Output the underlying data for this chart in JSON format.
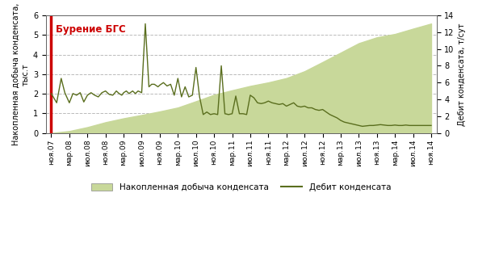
{
  "ylabel_left": "Накопленная добыча конденсата,\nтыс.т",
  "ylabel_right": "Дебит конденсата, т/сут",
  "ylim_left": [
    0,
    6
  ],
  "ylim_right": [
    0,
    14
  ],
  "yticks_left": [
    0,
    1,
    2,
    3,
    4,
    5,
    6
  ],
  "yticks_right": [
    0,
    2,
    4,
    6,
    8,
    10,
    12,
    14
  ],
  "annotation_text": "Бурение БГС",
  "annotation_color": "#cc0000",
  "fill_color": "#c8d89a",
  "line_color": "#5a6e1e",
  "legend_fill_label": "Накопленная добыча конденсата",
  "legend_line_label": "Дебит конденсата",
  "x_labels": [
    "ноя.07",
    "мар.08",
    "июл.08",
    "ноя.08",
    "мар.09",
    "июл.09",
    "ноя.09",
    "мар.10",
    "июл.10",
    "ноя.10",
    "мар.11",
    "июл.11",
    "ноя.11",
    "мар.12",
    "июл.12",
    "ноя.12",
    "мар.13",
    "июл.13",
    "ноя.13",
    "мар.14",
    "июл.14",
    "ноя.14"
  ],
  "cumulative_production": [
    0.0,
    0.1,
    0.3,
    0.55,
    0.75,
    0.92,
    1.1,
    1.3,
    1.62,
    1.95,
    2.18,
    2.4,
    2.58,
    2.8,
    3.15,
    3.62,
    4.1,
    4.58,
    4.88,
    5.05,
    5.32,
    5.58
  ],
  "debit_x": [
    0,
    0.3,
    0.55,
    0.75,
    1.0,
    1.2,
    1.4,
    1.6,
    1.8,
    2.0,
    2.2,
    2.4,
    2.6,
    2.8,
    3.0,
    3.2,
    3.4,
    3.6,
    3.75,
    3.9,
    4.0,
    4.15,
    4.3,
    4.5,
    4.65,
    4.8,
    5.0,
    5.2,
    5.4,
    5.55,
    5.7,
    5.9,
    6.0,
    6.2,
    6.4,
    6.6,
    6.8,
    7.0,
    7.2,
    7.4,
    7.6,
    7.8,
    8.0,
    8.2,
    8.4,
    8.6,
    8.8,
    9.0,
    9.2,
    9.4,
    9.6,
    9.8,
    10.0,
    10.2,
    10.4,
    10.6,
    10.8,
    11.0,
    11.2,
    11.4,
    11.6,
    11.8,
    12.0,
    12.2,
    12.4,
    12.6,
    12.8,
    13.0,
    13.2,
    13.4,
    13.6,
    13.8,
    14.0,
    14.2,
    14.4,
    14.6,
    14.8,
    15.0,
    15.2,
    15.4,
    15.6,
    15.8,
    16.0,
    16.2,
    16.4,
    16.6,
    16.8,
    17.0,
    17.2,
    17.4,
    17.6,
    17.8,
    18.0,
    18.2,
    18.4,
    18.6,
    18.8,
    19.0,
    19.2,
    19.4,
    19.6,
    19.8,
    20.0,
    20.2,
    20.4,
    20.6,
    20.8,
    21.0
  ],
  "debit_y": [
    4.7,
    3.6,
    6.5,
    4.8,
    3.6,
    4.7,
    4.5,
    4.8,
    3.7,
    4.5,
    4.8,
    4.5,
    4.3,
    4.8,
    5.0,
    4.6,
    4.5,
    5.0,
    4.7,
    4.5,
    4.8,
    5.0,
    4.7,
    5.0,
    4.7,
    5.0,
    4.8,
    13.0,
    5.5,
    5.8,
    5.8,
    5.5,
    5.7,
    6.0,
    5.6,
    5.8,
    4.5,
    6.5,
    4.3,
    5.5,
    4.3,
    4.5,
    7.8,
    4.3,
    2.2,
    2.5,
    2.2,
    2.3,
    2.2,
    8.0,
    2.3,
    2.2,
    2.3,
    4.4,
    2.3,
    2.3,
    2.2,
    4.5,
    4.2,
    3.6,
    3.5,
    3.6,
    3.8,
    3.6,
    3.5,
    3.4,
    3.5,
    3.2,
    3.4,
    3.6,
    3.2,
    3.1,
    3.2,
    3.0,
    3.0,
    2.8,
    2.7,
    2.8,
    2.5,
    2.2,
    2.0,
    1.8,
    1.5,
    1.3,
    1.2,
    1.1,
    1.0,
    0.9,
    0.8,
    0.85,
    0.9,
    0.9,
    0.95,
    1.0,
    0.95,
    0.9,
    0.9,
    0.95,
    0.9,
    0.9,
    0.95,
    0.9,
    0.9,
    0.9,
    0.9,
    0.9,
    0.9,
    0.9
  ],
  "background_color": "#ffffff",
  "grid_color": "#aaaaaa"
}
